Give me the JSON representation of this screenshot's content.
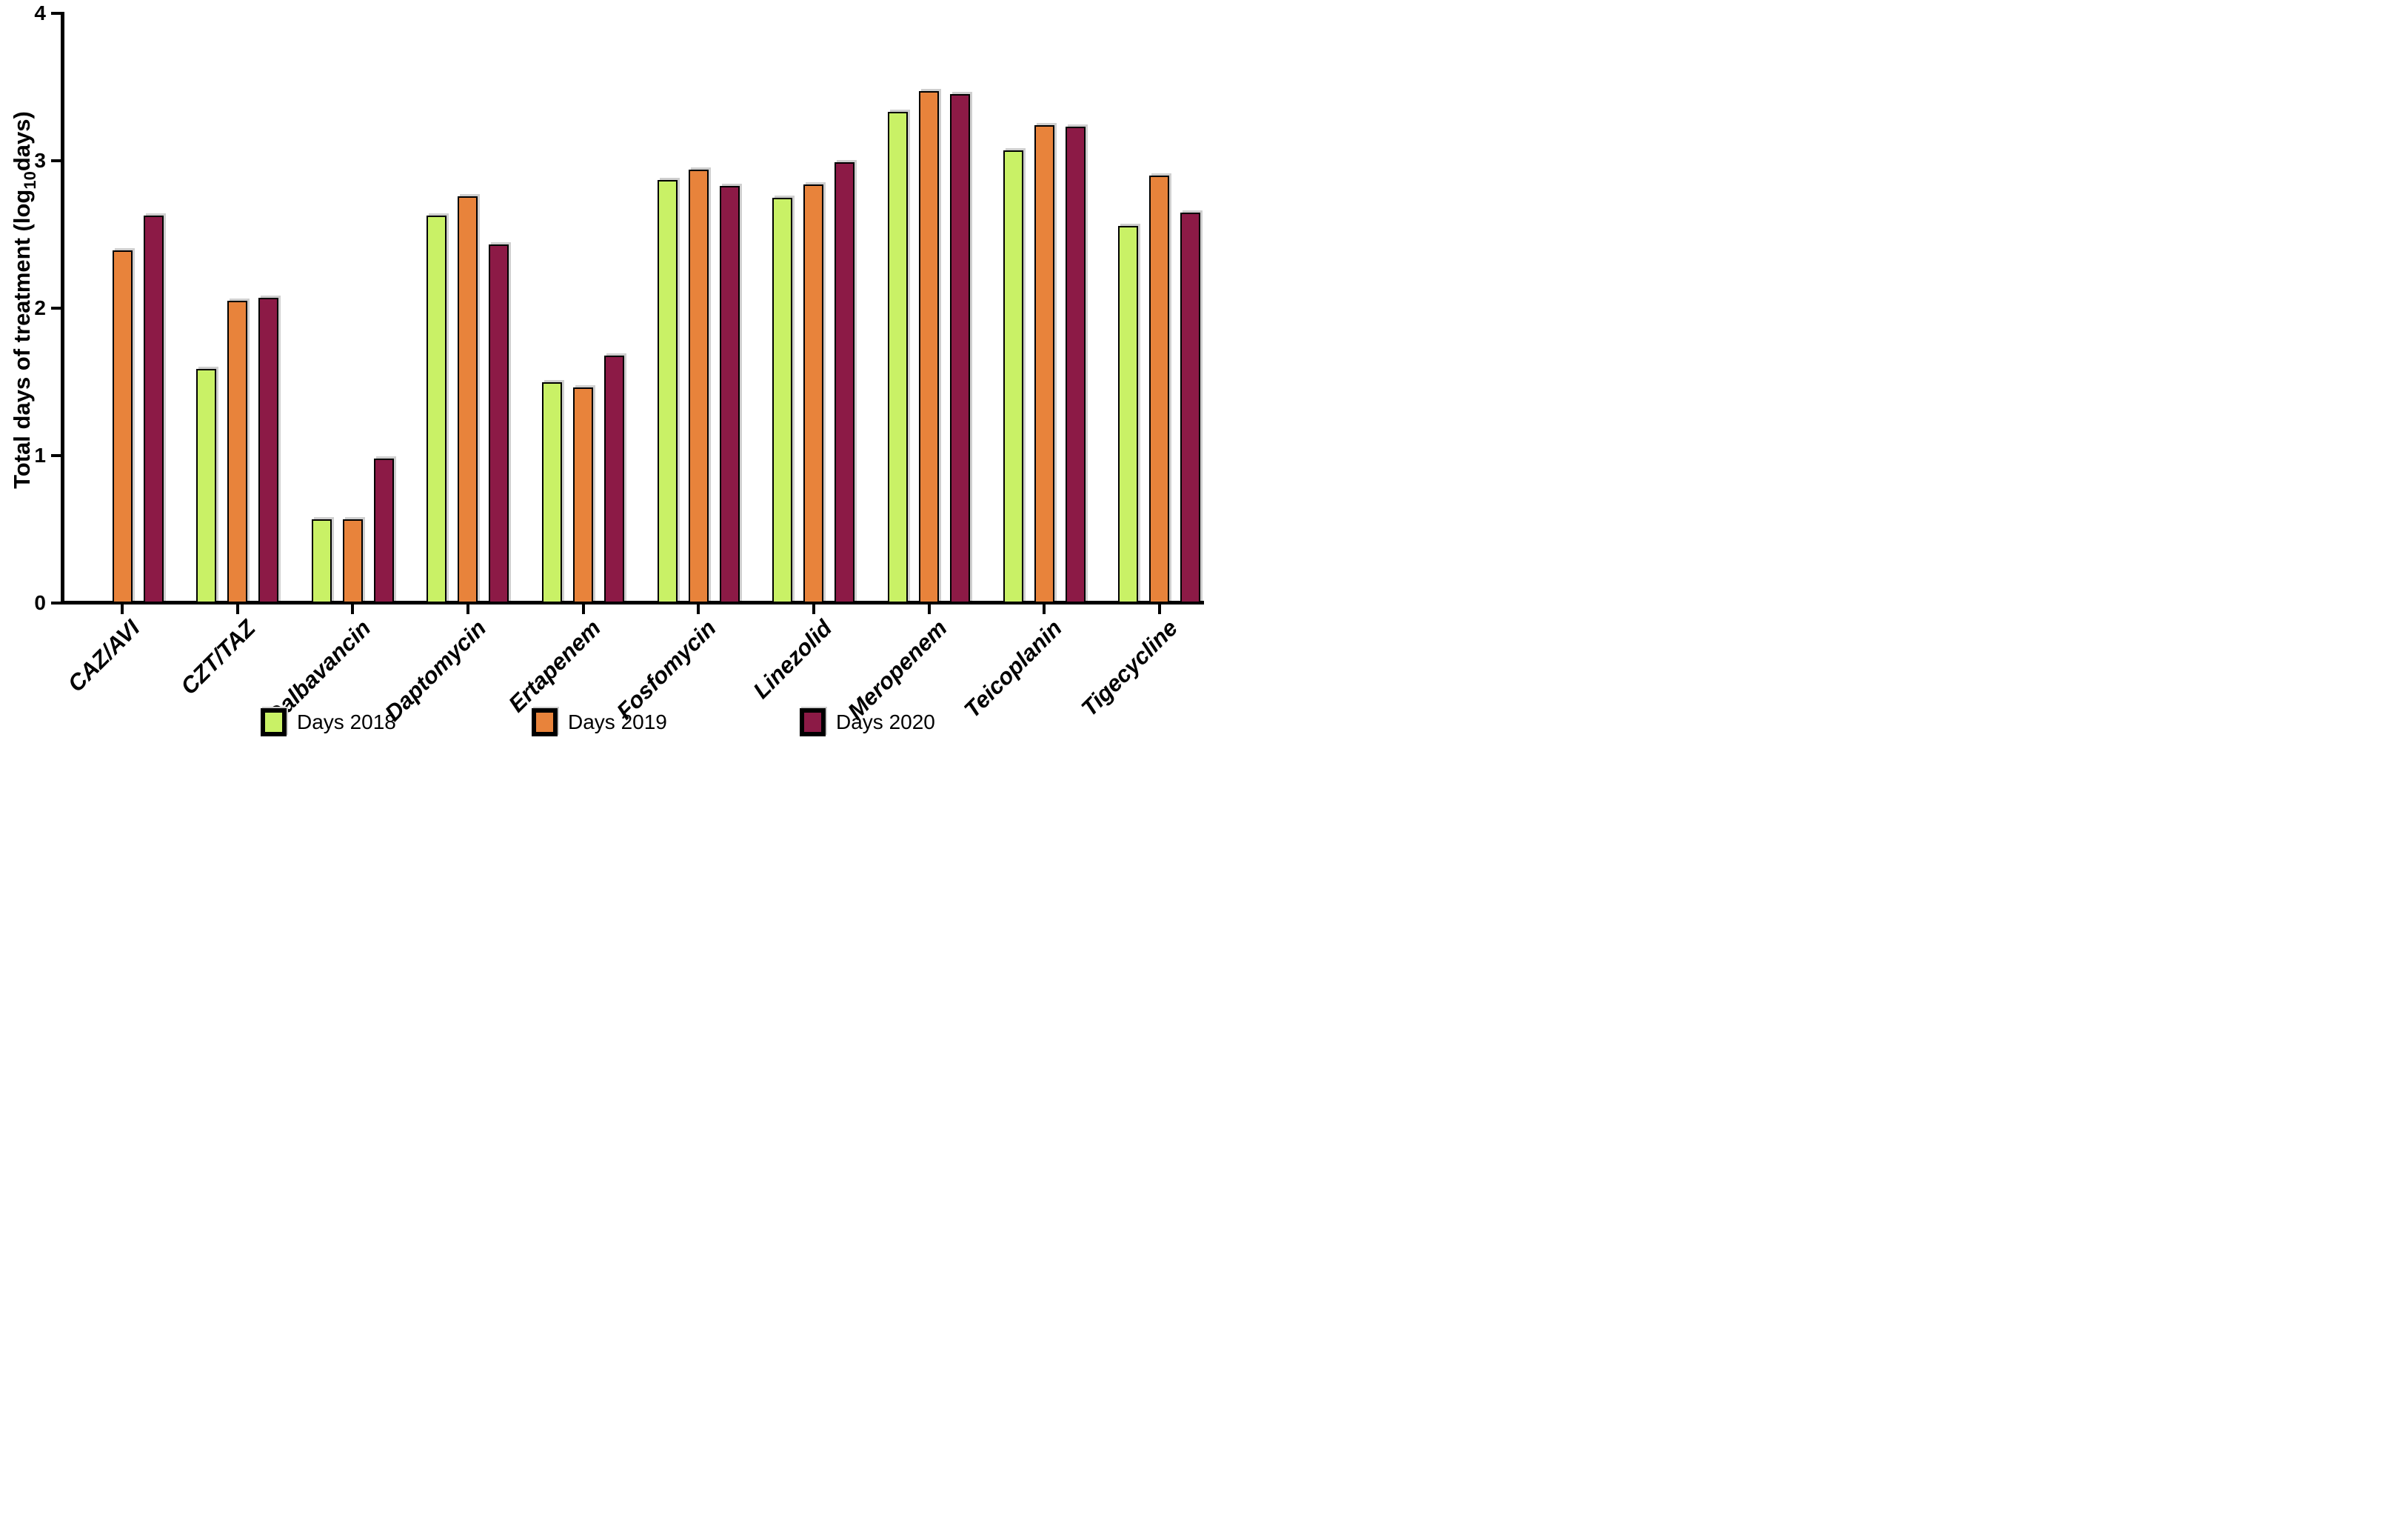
{
  "figure": {
    "ylabel_pre": "Total days of treatment (log",
    "ylabel_sub": "10",
    "ylabel_post": "days)"
  },
  "chart_data": {
    "type": "bar",
    "title": "",
    "xlabel": "",
    "ylabel": "Total days of treatment (log10 days)",
    "ylim": [
      0,
      4
    ],
    "yticks": [
      0,
      1,
      2,
      3,
      4
    ],
    "grid": false,
    "legend_position": "bottom",
    "bar_stroke_color": "#000000",
    "categories": [
      "CAZ/AVI",
      "CZT/TAZ",
      "Dalbavancin",
      "Daptomycin",
      "Ertapenem",
      "Fosfomycin",
      "Linezolid",
      "Meropenem",
      "Teicoplanin",
      "Tigecycline"
    ],
    "series": [
      {
        "name": "Days 2018",
        "color": "#c9f166",
        "values": [
          null,
          1.59,
          0.57,
          2.63,
          1.5,
          2.87,
          2.75,
          3.33,
          3.07,
          2.56
        ]
      },
      {
        "name": "Days 2019",
        "color": "#e8833b",
        "values": [
          2.39,
          2.05,
          0.57,
          2.76,
          1.46,
          2.94,
          2.84,
          3.47,
          3.24,
          2.9
        ]
      },
      {
        "name": "Days 2020",
        "color": "#8c1a46",
        "values": [
          2.63,
          2.07,
          0.98,
          2.43,
          1.68,
          2.83,
          2.99,
          3.45,
          3.23,
          2.65
        ]
      }
    ]
  }
}
